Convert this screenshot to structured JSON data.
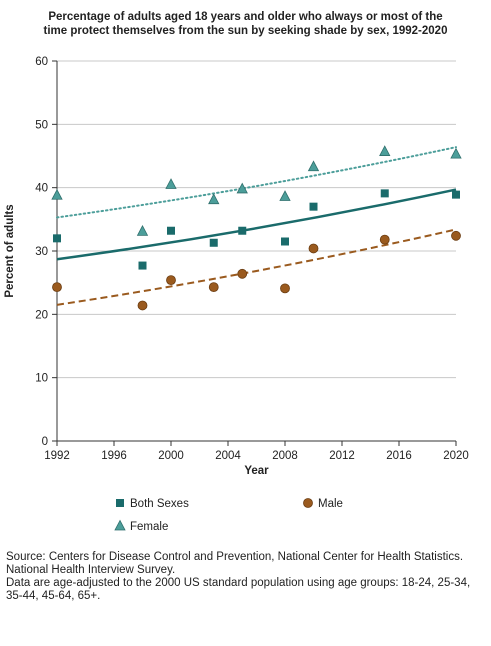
{
  "chart_data": {
    "type": "scatter",
    "title_line1": "Percentage of adults aged 18 years and older who always or most of the",
    "title_line2": "time protect themselves from the sun by seeking shade by sex, 1992-2020",
    "xlabel": "Year",
    "ylabel": "Percent of adults",
    "xlim": [
      1992,
      2020
    ],
    "ylim": [
      0,
      60
    ],
    "x_ticks": [
      "1992",
      "1996",
      "2000",
      "2004",
      "2008",
      "2012",
      "2016",
      "2020"
    ],
    "y_ticks": [
      "0",
      "10",
      "20",
      "30",
      "40",
      "50",
      "60"
    ],
    "grid": "horizontal",
    "legend_position": "bottom",
    "series": [
      {
        "name": "Both Sexes",
        "marker": "square",
        "color": "#1a6b6b",
        "trend_style": "solid",
        "trend": [
          28.7,
          39.7
        ],
        "points": [
          [
            1992,
            32.0
          ],
          [
            1998,
            27.7
          ],
          [
            2000,
            33.2
          ],
          [
            2003,
            31.3
          ],
          [
            2005,
            33.2
          ],
          [
            2008,
            31.5
          ],
          [
            2010,
            37.0
          ],
          [
            2015,
            39.1
          ],
          [
            2020,
            38.9
          ]
        ]
      },
      {
        "name": "Female",
        "marker": "triangle",
        "color": "#4c9e9a",
        "trend_style": "dotted",
        "trend": [
          35.3,
          46.4
        ],
        "points": [
          [
            1992,
            38.8
          ],
          [
            1998,
            33.1
          ],
          [
            2000,
            40.5
          ],
          [
            2003,
            38.1
          ],
          [
            2005,
            39.8
          ],
          [
            2008,
            38.6
          ],
          [
            2010,
            43.3
          ],
          [
            2015,
            45.7
          ],
          [
            2020,
            45.3
          ]
        ]
      },
      {
        "name": "Male",
        "marker": "circle",
        "color": "#9a5a1e",
        "trend_style": "dashed",
        "trend": [
          21.5,
          33.4
        ],
        "points": [
          [
            1992,
            24.3
          ],
          [
            1998,
            21.4
          ],
          [
            2000,
            25.4
          ],
          [
            2003,
            24.3
          ],
          [
            2005,
            26.4
          ],
          [
            2008,
            24.1
          ],
          [
            2010,
            30.4
          ],
          [
            2015,
            31.8
          ],
          [
            2020,
            32.4
          ]
        ]
      }
    ]
  },
  "footnote": {
    "line1": "Source: Centers for Disease Control and Prevention, National Center for Health Statistics.",
    "line2": "National Health Interview Survey.",
    "line3": "Data are age-adjusted to the 2000 US standard population using age groups: 18-24, 25-34,",
    "line4": "35-44, 45-64, 65+."
  }
}
